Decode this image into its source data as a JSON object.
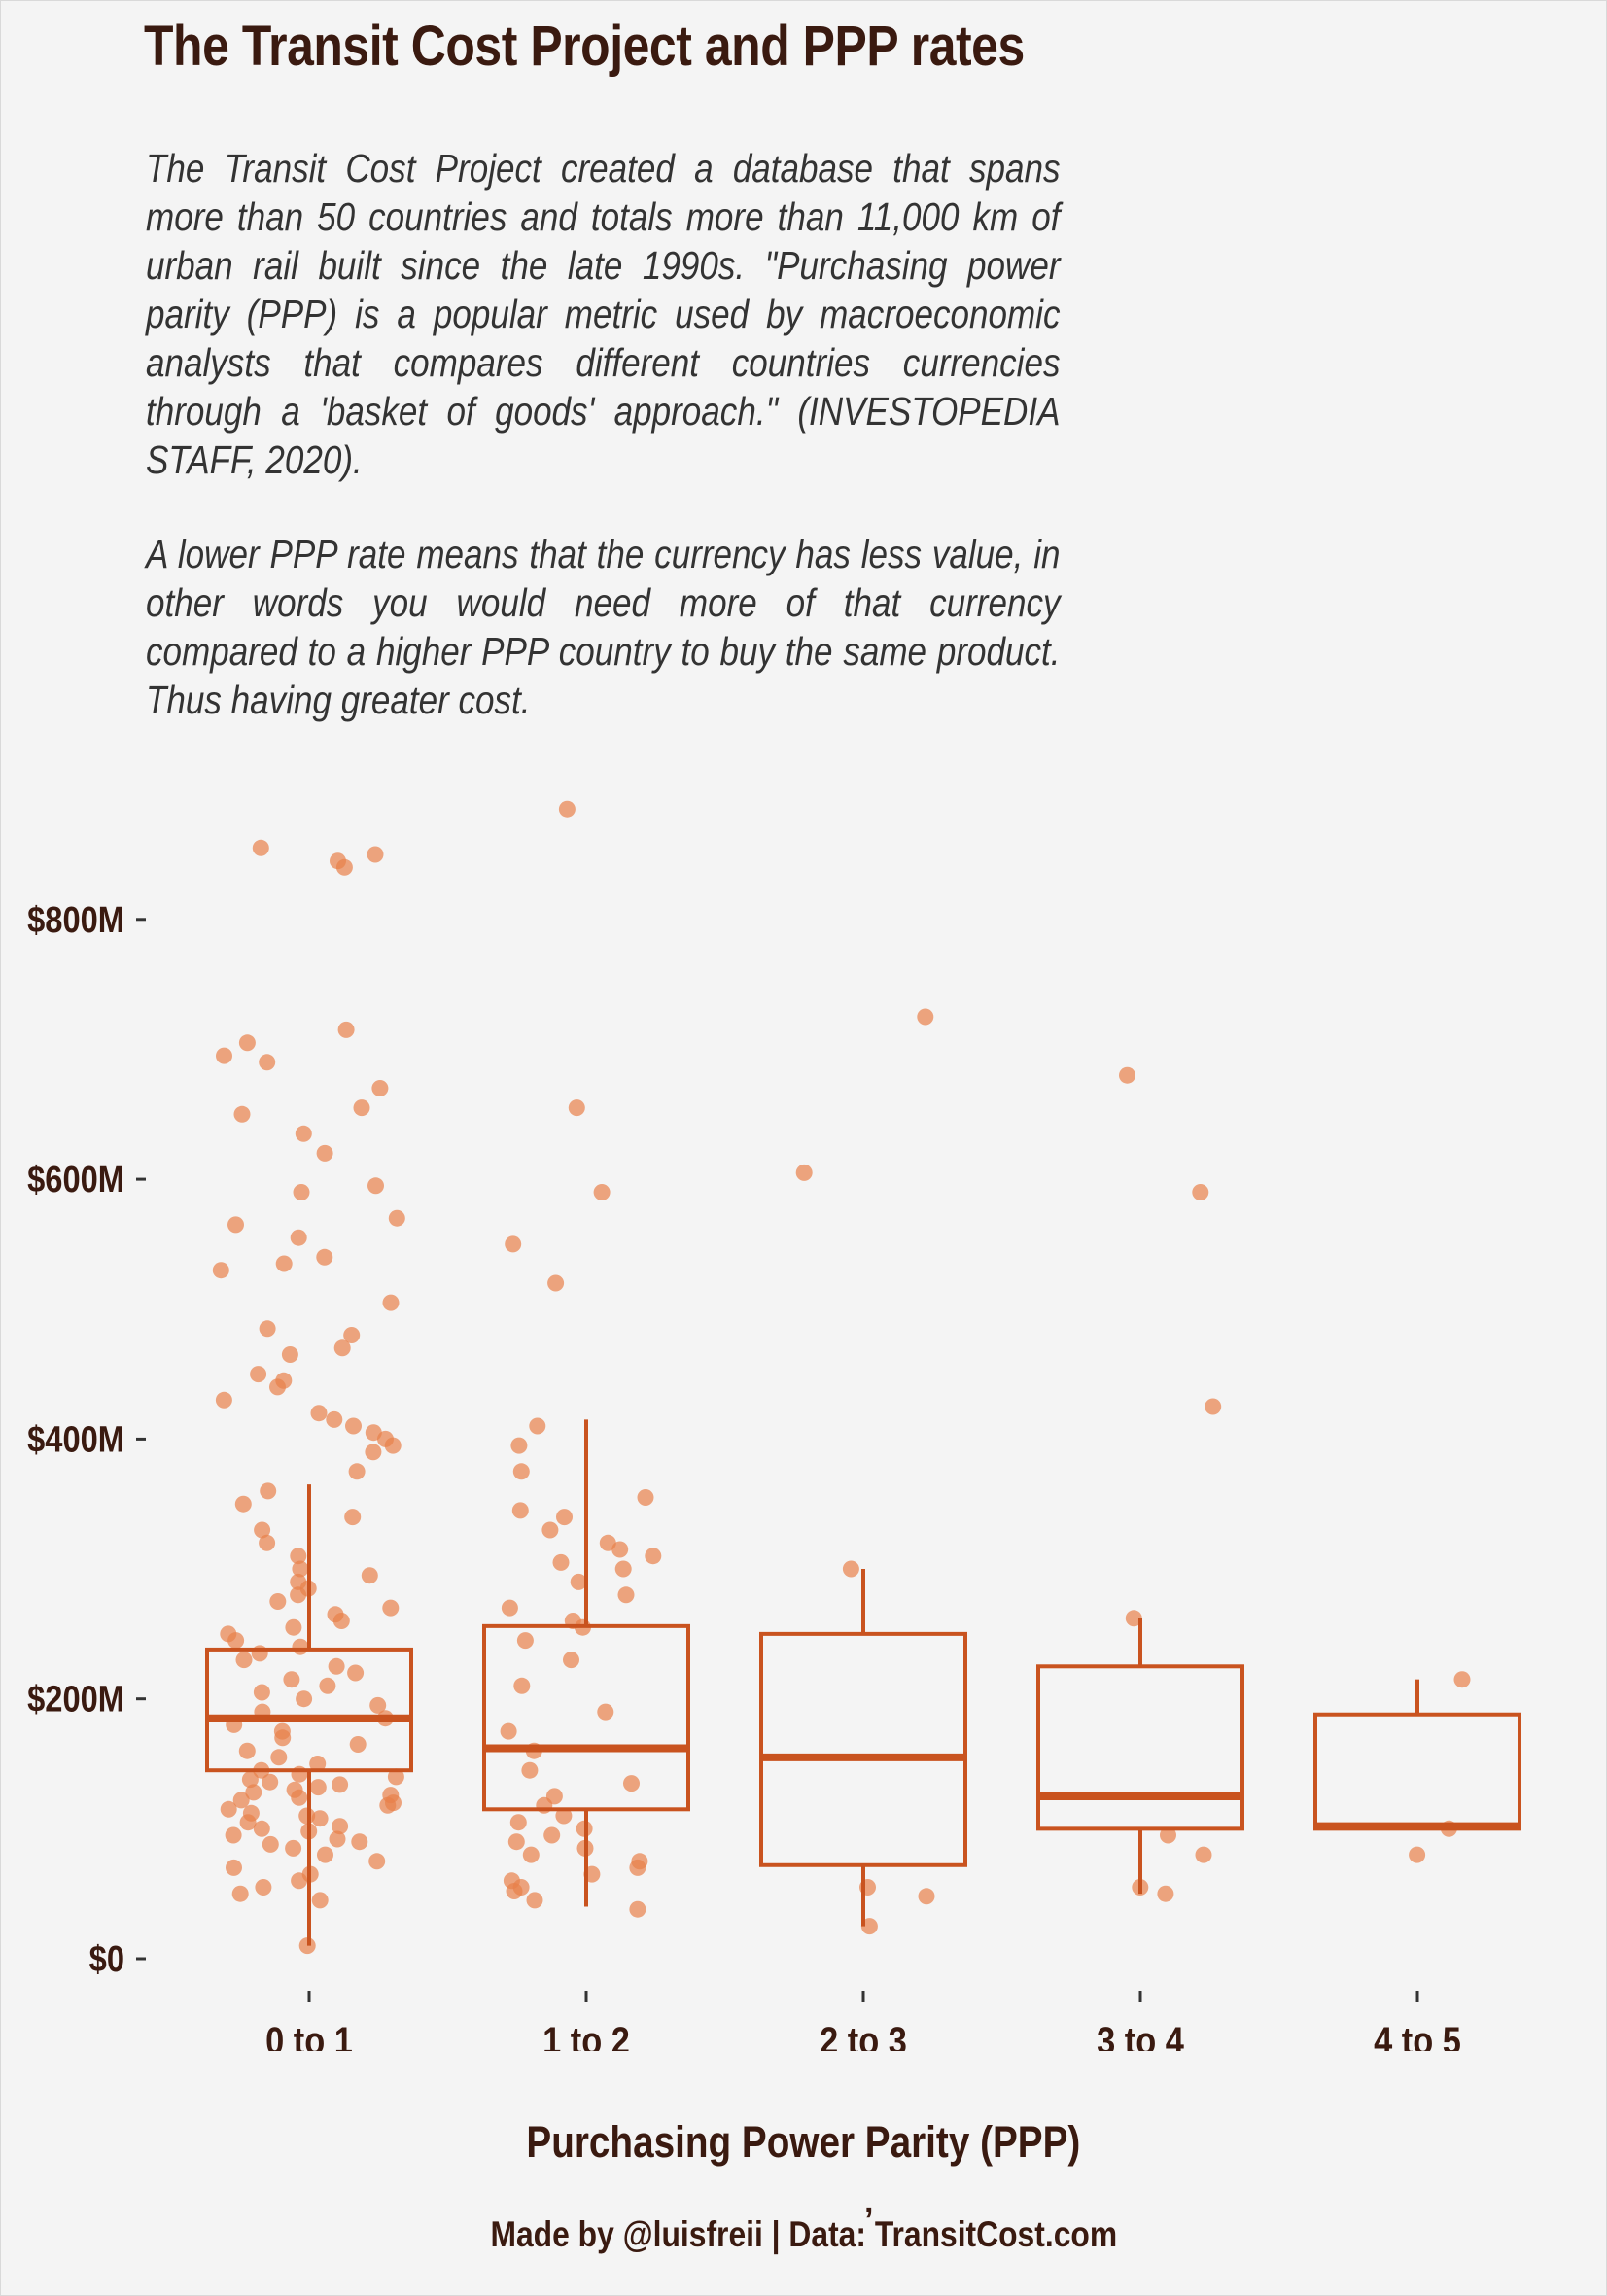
{
  "title": "The Transit Cost Project and PPP rates",
  "subtitle_paragraphs": [
    "The Transit Cost Project created a database that spans more than 50 countries and totals more than 11,000 km of urban rail built since the late 1990s. \"Purchasing power parity (PPP) is a popular metric used by macroeconomic analysts that compares different countries currencies through a 'basket of goods' approach.\" (INVESTOPEDIA STAFF, 2020).",
    "A lower PPP rate means that the currency has less value, in other words you would need more of that currency compared to a higher PPP country to buy the same product. Thus having greater cost."
  ],
  "caption_mark": ",",
  "caption": "Made by @luisfreii | Data: TransitCost.com",
  "colors": {
    "box": "#c9531f",
    "points": "#e8804a",
    "text": "#3a1a10",
    "background": "#f4f4f4"
  },
  "chart_data": {
    "type": "boxplot",
    "title": "The Transit Cost Project and PPP rates",
    "xlabel": "Purchasing Power Parity (PPP)",
    "ylabel": "",
    "ylim": [
      0,
      880
    ],
    "y_unit": "M USD",
    "y_ticks": [
      {
        "value": 0,
        "label": "$0"
      },
      {
        "value": 200,
        "label": "$200M"
      },
      {
        "value": 400,
        "label": "$400M"
      },
      {
        "value": 600,
        "label": "$600M"
      },
      {
        "value": 800,
        "label": "$800M"
      }
    ],
    "categories": [
      "0 to 1",
      "1 to 2",
      "2 to 3",
      "3 to 4",
      "4 to 5"
    ],
    "boxes": [
      {
        "category": "0 to 1",
        "whisker_low": 10,
        "q1": 145,
        "median": 185,
        "q3": 238,
        "whisker_high": 365
      },
      {
        "category": "1 to 2",
        "whisker_low": 40,
        "q1": 115,
        "median": 162,
        "q3": 256,
        "whisker_high": 415
      },
      {
        "category": "2 to 3",
        "whisker_low": 25,
        "q1": 72,
        "median": 155,
        "q3": 250,
        "whisker_high": 300
      },
      {
        "category": "3 to 4",
        "whisker_low": 50,
        "q1": 100,
        "median": 125,
        "q3": 225,
        "whisker_high": 262
      },
      {
        "category": "4 to 5",
        "whisker_low": 100,
        "q1": 100,
        "median": 102,
        "q3": 188,
        "whisker_high": 215
      }
    ],
    "points": [
      [
        0,
        10
      ],
      [
        0,
        45
      ],
      [
        0,
        50
      ],
      [
        0,
        55
      ],
      [
        0,
        60
      ],
      [
        0,
        65
      ],
      [
        0,
        70
      ],
      [
        0,
        75
      ],
      [
        0,
        80
      ],
      [
        0,
        85
      ],
      [
        0,
        88
      ],
      [
        0,
        90
      ],
      [
        0,
        92
      ],
      [
        0,
        95
      ],
      [
        0,
        98
      ],
      [
        0,
        100
      ],
      [
        0,
        102
      ],
      [
        0,
        105
      ],
      [
        0,
        108
      ],
      [
        0,
        110
      ],
      [
        0,
        112
      ],
      [
        0,
        115
      ],
      [
        0,
        118
      ],
      [
        0,
        120
      ],
      [
        0,
        122
      ],
      [
        0,
        124
      ],
      [
        0,
        126
      ],
      [
        0,
        128
      ],
      [
        0,
        130
      ],
      [
        0,
        132
      ],
      [
        0,
        134
      ],
      [
        0,
        136
      ],
      [
        0,
        138
      ],
      [
        0,
        140
      ],
      [
        0,
        142
      ],
      [
        0,
        145
      ],
      [
        0,
        150
      ],
      [
        0,
        155
      ],
      [
        0,
        160
      ],
      [
        0,
        165
      ],
      [
        0,
        170
      ],
      [
        0,
        175
      ],
      [
        0,
        180
      ],
      [
        0,
        185
      ],
      [
        0,
        190
      ],
      [
        0,
        195
      ],
      [
        0,
        200
      ],
      [
        0,
        205
      ],
      [
        0,
        210
      ],
      [
        0,
        215
      ],
      [
        0,
        220
      ],
      [
        0,
        225
      ],
      [
        0,
        230
      ],
      [
        0,
        235
      ],
      [
        0,
        240
      ],
      [
        0,
        245
      ],
      [
        0,
        250
      ],
      [
        0,
        255
      ],
      [
        0,
        260
      ],
      [
        0,
        265
      ],
      [
        0,
        270
      ],
      [
        0,
        275
      ],
      [
        0,
        280
      ],
      [
        0,
        285
      ],
      [
        0,
        290
      ],
      [
        0,
        295
      ],
      [
        0,
        300
      ],
      [
        0,
        310
      ],
      [
        0,
        320
      ],
      [
        0,
        330
      ],
      [
        0,
        340
      ],
      [
        0,
        350
      ],
      [
        0,
        360
      ],
      [
        0,
        375
      ],
      [
        0,
        390
      ],
      [
        0,
        395
      ],
      [
        0,
        400
      ],
      [
        0,
        405
      ],
      [
        0,
        410
      ],
      [
        0,
        415
      ],
      [
        0,
        420
      ],
      [
        0,
        430
      ],
      [
        0,
        440
      ],
      [
        0,
        445
      ],
      [
        0,
        450
      ],
      [
        0,
        465
      ],
      [
        0,
        470
      ],
      [
        0,
        480
      ],
      [
        0,
        485
      ],
      [
        0,
        505
      ],
      [
        0,
        530
      ],
      [
        0,
        535
      ],
      [
        0,
        540
      ],
      [
        0,
        555
      ],
      [
        0,
        565
      ],
      [
        0,
        570
      ],
      [
        0,
        590
      ],
      [
        0,
        595
      ],
      [
        0,
        620
      ],
      [
        0,
        635
      ],
      [
        0,
        650
      ],
      [
        0,
        655
      ],
      [
        0,
        670
      ],
      [
        0,
        690
      ],
      [
        0,
        695
      ],
      [
        0,
        705
      ],
      [
        0,
        715
      ],
      [
        0,
        840
      ],
      [
        0,
        845
      ],
      [
        0,
        850
      ],
      [
        0,
        855
      ],
      [
        1,
        38
      ],
      [
        1,
        45
      ],
      [
        1,
        52
      ],
      [
        1,
        55
      ],
      [
        1,
        60
      ],
      [
        1,
        65
      ],
      [
        1,
        70
      ],
      [
        1,
        75
      ],
      [
        1,
        80
      ],
      [
        1,
        85
      ],
      [
        1,
        90
      ],
      [
        1,
        95
      ],
      [
        1,
        100
      ],
      [
        1,
        105
      ],
      [
        1,
        110
      ],
      [
        1,
        118
      ],
      [
        1,
        125
      ],
      [
        1,
        135
      ],
      [
        1,
        145
      ],
      [
        1,
        160
      ],
      [
        1,
        175
      ],
      [
        1,
        190
      ],
      [
        1,
        210
      ],
      [
        1,
        230
      ],
      [
        1,
        245
      ],
      [
        1,
        255
      ],
      [
        1,
        260
      ],
      [
        1,
        270
      ],
      [
        1,
        280
      ],
      [
        1,
        290
      ],
      [
        1,
        300
      ],
      [
        1,
        305
      ],
      [
        1,
        310
      ],
      [
        1,
        315
      ],
      [
        1,
        320
      ],
      [
        1,
        330
      ],
      [
        1,
        340
      ],
      [
        1,
        345
      ],
      [
        1,
        355
      ],
      [
        1,
        375
      ],
      [
        1,
        395
      ],
      [
        1,
        410
      ],
      [
        1,
        520
      ],
      [
        1,
        550
      ],
      [
        1,
        590
      ],
      [
        1,
        655
      ],
      [
        1,
        885
      ],
      [
        2,
        25
      ],
      [
        2,
        48
      ],
      [
        2,
        55
      ],
      [
        2,
        300
      ],
      [
        2,
        605
      ],
      [
        2,
        725
      ],
      [
        3,
        50
      ],
      [
        3,
        55
      ],
      [
        3,
        80
      ],
      [
        3,
        95
      ],
      [
        3,
        262
      ],
      [
        3,
        425
      ],
      [
        3,
        590
      ],
      [
        3,
        680
      ],
      [
        4,
        80
      ],
      [
        4,
        100
      ],
      [
        4,
        215
      ]
    ]
  }
}
